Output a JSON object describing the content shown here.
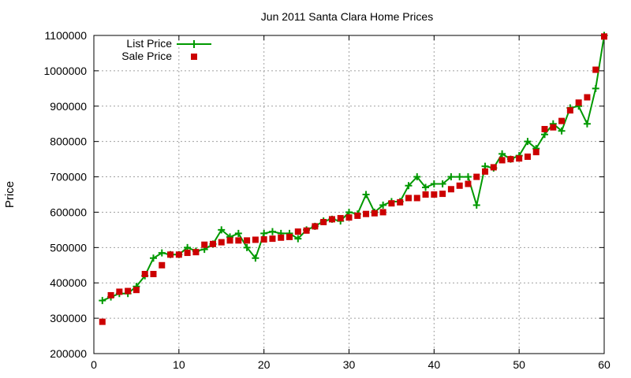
{
  "chart_data": {
    "type": "line",
    "title": "Jun 2011 Santa Clara Home Prices",
    "ylabel": "Price",
    "xlabel": "",
    "xlim": [
      0,
      60
    ],
    "ylim": [
      200000,
      1100000
    ],
    "xticks": [
      0,
      10,
      20,
      30,
      40,
      50,
      60
    ],
    "yticks": [
      200000,
      300000,
      400000,
      500000,
      600000,
      700000,
      800000,
      900000,
      1000000,
      1100000
    ],
    "grid": true,
    "legend_position": "top-left",
    "x": [
      1,
      2,
      3,
      4,
      5,
      6,
      7,
      8,
      9,
      10,
      11,
      12,
      13,
      14,
      15,
      16,
      17,
      18,
      19,
      20,
      21,
      22,
      23,
      24,
      25,
      26,
      27,
      28,
      29,
      30,
      31,
      32,
      33,
      34,
      35,
      36,
      37,
      38,
      39,
      40,
      41,
      42,
      43,
      44,
      45,
      46,
      47,
      48,
      49,
      50,
      51,
      52,
      53,
      54,
      55,
      56,
      57,
      58,
      59,
      60
    ],
    "series": [
      {
        "name": "List Price",
        "style": "line-plus",
        "color": "#009900",
        "values": [
          350000,
          360000,
          370000,
          370000,
          390000,
          420000,
          470000,
          485000,
          480000,
          480000,
          500000,
          490000,
          495000,
          510000,
          550000,
          530000,
          540000,
          500000,
          470000,
          540000,
          545000,
          540000,
          540000,
          525000,
          550000,
          560000,
          575000,
          580000,
          575000,
          600000,
          595000,
          650000,
          600000,
          620000,
          630000,
          630000,
          675000,
          700000,
          670000,
          680000,
          680000,
          700000,
          700000,
          700000,
          620000,
          730000,
          725000,
          765000,
          750000,
          760000,
          800000,
          780000,
          820000,
          850000,
          830000,
          895000,
          900000,
          850000,
          950000,
          1100000
        ]
      },
      {
        "name": "Sale Price",
        "style": "square",
        "color": "#cc0000",
        "values": [
          290000,
          365000,
          375000,
          377000,
          380000,
          425000,
          425000,
          450000,
          480000,
          480000,
          485000,
          487000,
          508000,
          510000,
          515000,
          520000,
          520000,
          520000,
          522000,
          523000,
          525000,
          528000,
          530000,
          545000,
          548000,
          560000,
          572000,
          580000,
          583000,
          585000,
          590000,
          595000,
          597000,
          600000,
          625000,
          628000,
          640000,
          640000,
          650000,
          650000,
          652000,
          665000,
          675000,
          680000,
          700000,
          715000,
          727000,
          747000,
          750000,
          752000,
          757000,
          770000,
          835000,
          840000,
          858000,
          888000,
          910000,
          925000,
          1003000,
          1097000
        ]
      }
    ]
  }
}
